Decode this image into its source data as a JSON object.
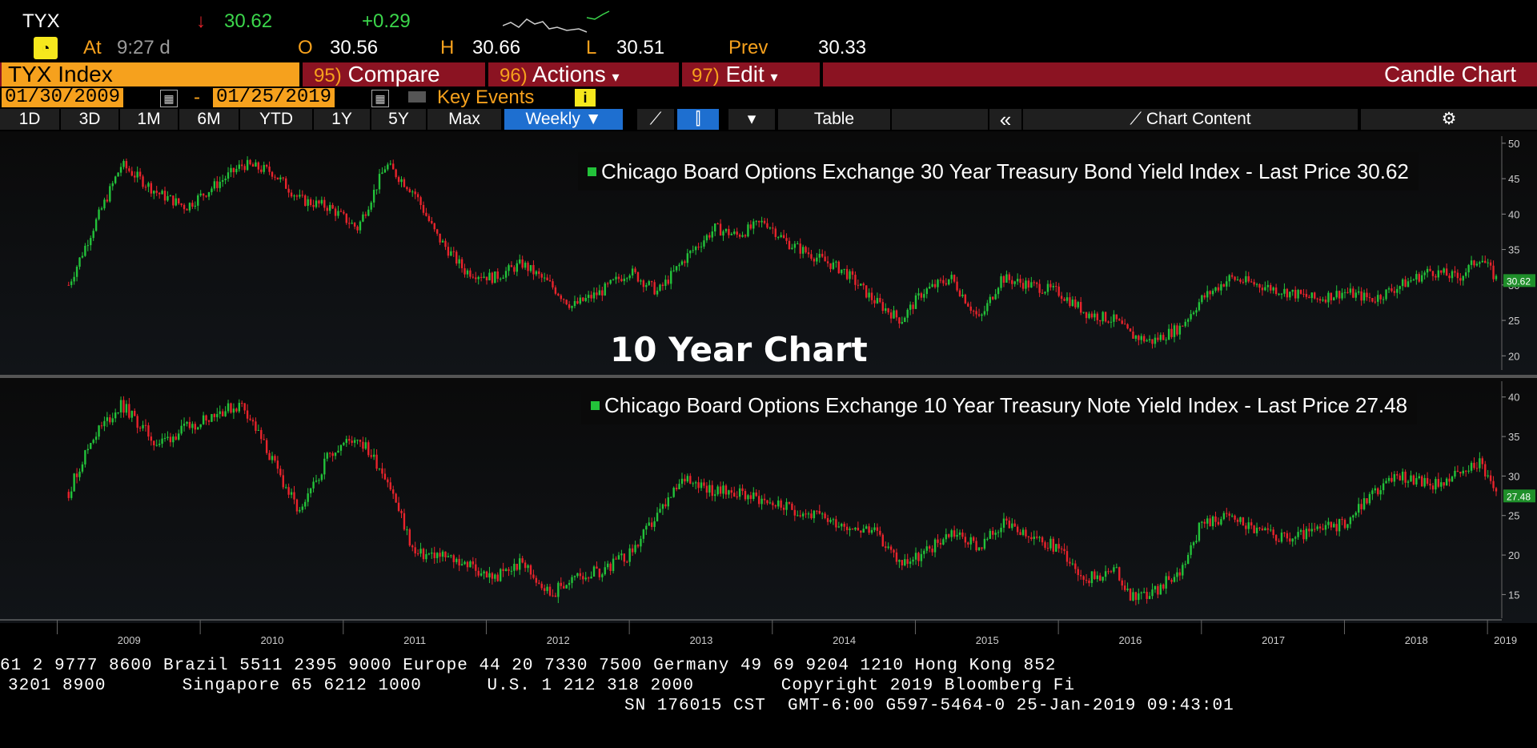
{
  "quote": {
    "ticker": "TYX",
    "arrow": "↓",
    "last": "30.62",
    "change": "+0.29",
    "at_label": "At",
    "time": "9:27 d",
    "o_label": "O",
    "open": "30.56",
    "h_label": "H",
    "high": "30.66",
    "l_label": "L",
    "low": "30.51",
    "prev_label": "Prev",
    "prev": "30.33"
  },
  "menubar": {
    "security": "TYX Index",
    "compare_num": "95)",
    "compare": "Compare",
    "actions_num": "96)",
    "actions": "Actions",
    "edit_num": "97)",
    "edit": "Edit",
    "chart_type": "Candle Chart"
  },
  "daterange": {
    "start": "01/30/2009",
    "dash": "-",
    "end": "01/25/2019",
    "key_events": "Key Events"
  },
  "toolbar": {
    "periods": [
      "1D",
      "3D",
      "1M",
      "6M",
      "YTD",
      "1Y",
      "5Y",
      "Max"
    ],
    "frequency": "Weekly",
    "table": "Table",
    "collapse": "«",
    "chart_content": "Chart Content"
  },
  "overlay_title": "10 Year Chart",
  "colors": {
    "up": "#23c23a",
    "down": "#e8242c",
    "accent": "#f6a11d",
    "menubar": "#8b1322",
    "active": "#1e6fd0"
  },
  "chart_data": [
    {
      "type": "candlestick",
      "title": "Chicago Board Options Exchange 30 Year Treasury Bond Yield Index - Last Price",
      "last_price": "30.62",
      "ylim": [
        18,
        51
      ],
      "yticks": [
        20,
        25,
        30,
        35,
        40,
        45,
        50
      ],
      "x": [
        2009.08,
        2009.25,
        2009.45,
        2009.7,
        2009.9,
        2010.1,
        2010.3,
        2010.5,
        2010.7,
        2010.9,
        2011.1,
        2011.3,
        2011.5,
        2011.65,
        2011.85,
        2012.05,
        2012.25,
        2012.45,
        2012.6,
        2012.8,
        2013.0,
        2013.2,
        2013.4,
        2013.6,
        2013.75,
        2013.95,
        2014.1,
        2014.3,
        2014.5,
        2014.7,
        2014.9,
        2015.05,
        2015.25,
        2015.45,
        2015.6,
        2015.8,
        2016.0,
        2016.2,
        2016.4,
        2016.5,
        2016.65,
        2016.85,
        2017.0,
        2017.2,
        2017.4,
        2017.6,
        2017.8,
        2018.0,
        2018.2,
        2018.4,
        2018.6,
        2018.8,
        2018.95,
        2019.07
      ],
      "y": [
        30,
        38,
        47,
        43,
        41,
        44,
        47,
        46,
        42,
        41,
        38,
        47,
        43,
        37,
        32,
        31,
        33,
        30,
        27,
        29,
        32,
        29,
        34,
        38,
        37,
        39,
        36,
        34,
        32,
        28,
        25,
        29,
        31,
        25,
        31,
        30,
        29,
        26,
        25,
        23,
        22,
        24,
        28,
        31,
        30,
        29,
        28,
        29,
        28,
        30,
        32,
        31,
        34,
        30.6
      ]
    },
    {
      "type": "candlestick",
      "title": "Chicago Board Options Exchange 10 Year Treasury Note Yield Index - Last Price",
      "last_price": "27.48",
      "ylim": [
        12,
        42
      ],
      "yticks": [
        15,
        20,
        25,
        30,
        35,
        40
      ],
      "x_ticks": [
        "2009",
        "2010",
        "2011",
        "2012",
        "2013",
        "2014",
        "2015",
        "2016",
        "2017",
        "2018",
        "2019"
      ],
      "x": [
        2009.08,
        2009.25,
        2009.45,
        2009.7,
        2009.9,
        2010.1,
        2010.3,
        2010.5,
        2010.7,
        2010.9,
        2011.1,
        2011.3,
        2011.5,
        2011.65,
        2011.85,
        2012.05,
        2012.25,
        2012.45,
        2012.6,
        2012.8,
        2013.0,
        2013.2,
        2013.4,
        2013.6,
        2013.75,
        2013.95,
        2014.1,
        2014.3,
        2014.5,
        2014.7,
        2014.9,
        2015.05,
        2015.25,
        2015.45,
        2015.6,
        2015.8,
        2016.0,
        2016.2,
        2016.4,
        2016.5,
        2016.65,
        2016.85,
        2017.0,
        2017.2,
        2017.4,
        2017.6,
        2017.8,
        2018.0,
        2018.2,
        2018.4,
        2018.6,
        2018.8,
        2018.95,
        2019.07
      ],
      "y": [
        28,
        35,
        39,
        34,
        36,
        38,
        39,
        32,
        25,
        33,
        35,
        30,
        20,
        20,
        19,
        17,
        19,
        15,
        17,
        18,
        20,
        25,
        30,
        28,
        28,
        27,
        26,
        25,
        24,
        23,
        19,
        20,
        23,
        21,
        24,
        22,
        21,
        17,
        18,
        15,
        15,
        18,
        24,
        25,
        23,
        22,
        23,
        24,
        28,
        30,
        29,
        30,
        32,
        27.5
      ]
    }
  ],
  "footer": {
    "line1": "61 2 9777 8600 Brazil 5511 2395 9000 Europe 44 20 7330 7500 Germany 49 69 9204 1210 Hong Kong 852",
    "line2": "3201 8900       Singapore 65 6212 1000      U.S. 1 212 318 2000        Copyright 2019 Bloomberg Fi",
    "line3": "SN 176015 CST  GMT-6:00 G597-5464-0 25-Jan-2019 09:43:01"
  }
}
